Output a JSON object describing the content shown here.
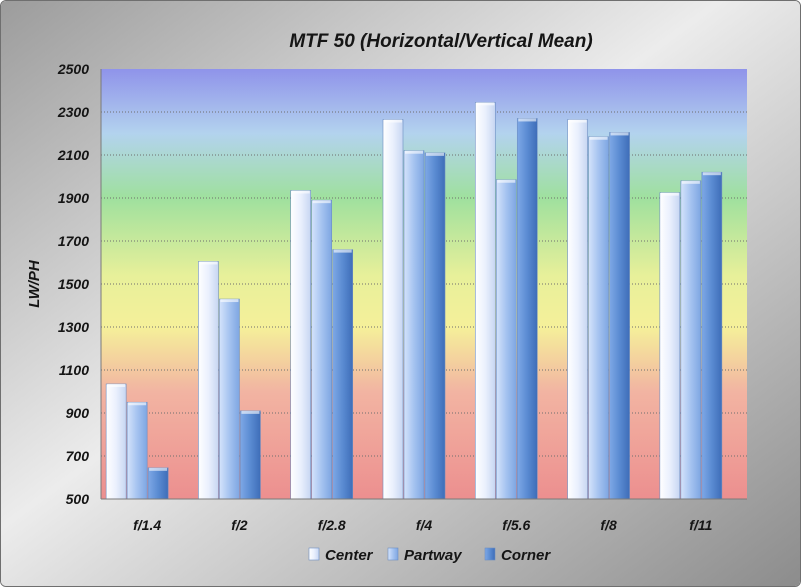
{
  "chart_data": {
    "type": "bar",
    "title": "MTF 50 (Horizontal/Vertical Mean)",
    "xlabel": "",
    "ylabel": "LW/PH",
    "ylim": [
      500,
      2500
    ],
    "yticks": [
      500,
      700,
      900,
      1100,
      1300,
      1500,
      1700,
      1900,
      2100,
      2300,
      2500
    ],
    "categories": [
      "f/1.4",
      "f/2",
      "f/2.8",
      "f/4",
      "f/5.6",
      "f/8",
      "f/11"
    ],
    "series": [
      {
        "name": "Center",
        "color": "#eef3ff",
        "values": [
          1035,
          1605,
          1935,
          2265,
          2345,
          2265,
          1925
        ]
      },
      {
        "name": "Partway",
        "color": "#a9c6f2",
        "values": [
          950,
          1430,
          1890,
          2120,
          1985,
          2185,
          1980
        ]
      },
      {
        "name": "Corner",
        "color": "#5a8bd2",
        "values": [
          645,
          910,
          1660,
          2110,
          2270,
          2205,
          2020
        ]
      }
    ],
    "grid": true,
    "legend": "bottom"
  }
}
